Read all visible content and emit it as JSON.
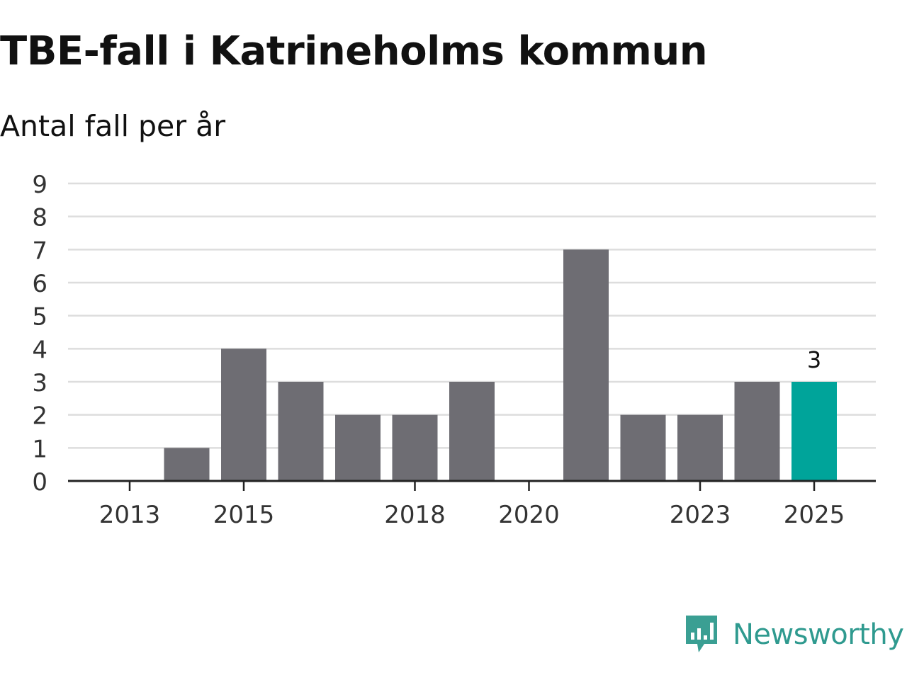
{
  "title": "TBE-fall i Katrineholms kommun",
  "subtitle": "Antal fall per år",
  "brand": {
    "name": "Newsworthy",
    "logo_icon": "newsworthy-bar-chart-icon",
    "color": "#3a9f93"
  },
  "chart_data": {
    "type": "bar",
    "title": "TBE-fall i Katrineholms kommun",
    "subtitle": "Antal fall per år",
    "xlabel": "",
    "ylabel": "",
    "categories": [
      2013,
      2014,
      2015,
      2016,
      2017,
      2018,
      2019,
      2020,
      2021,
      2022,
      2023,
      2024,
      2025
    ],
    "values": [
      0,
      1,
      4,
      3,
      2,
      2,
      3,
      0,
      7,
      2,
      2,
      3,
      3
    ],
    "x_tick_labels": [
      "2013",
      "2015",
      "2018",
      "2020",
      "2023",
      "2025"
    ],
    "y_ticks": [
      0,
      1,
      2,
      3,
      4,
      5,
      6,
      7,
      8,
      9
    ],
    "ylim": [
      0,
      9
    ],
    "grid": true,
    "bar_color": "#6e6d73",
    "highlight": {
      "category": 2025,
      "color": "#00a49a",
      "label": "3"
    }
  }
}
